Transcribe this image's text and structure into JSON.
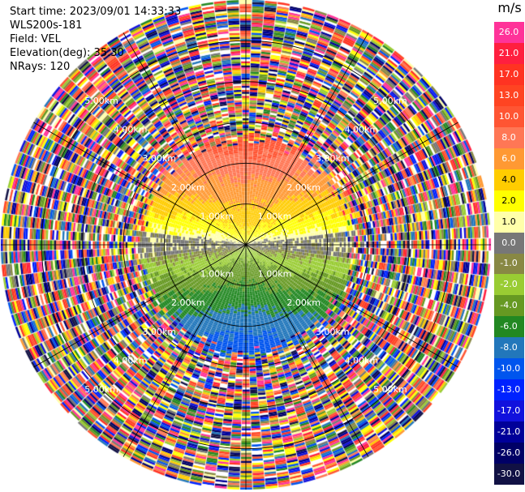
{
  "header": {
    "start_time": "Start time: 2023/09/01 14:33:33",
    "instrument": "WLS200s-181",
    "field": "Field: VEL",
    "elevation": "Elevation(deg): 35.30",
    "nrays": "NRays: 120"
  },
  "chart_data": {
    "type": "heatmap",
    "projection": "polar-ppi",
    "title": "",
    "nrays": 120,
    "max_range_km": 6.0,
    "range_rings_km": [
      1.0,
      2.0,
      3.0,
      4.0,
      5.0
    ],
    "ring_labels": [
      "1.00km",
      "2.00km",
      "3.00km",
      "4.00km",
      "5.00km"
    ],
    "clean_range_km": 2.6,
    "flow_direction": "north-positive / south-negative",
    "colorbar": {
      "unit": "m/s",
      "ticks": [
        "26.0",
        "21.0",
        "17.0",
        "13.0",
        "10.0",
        "8.0",
        "6.0",
        "4.0",
        "2.0",
        "1.0",
        "0.0",
        "-1.0",
        "-2.0",
        "-4.0",
        "-6.0",
        "-8.0",
        "-10.0",
        "-13.0",
        "-17.0",
        "-21.0",
        "-26.0",
        "-30.0"
      ],
      "colors": [
        "#ff3399",
        "#ff1f3f",
        "#ff3322",
        "#ff4422",
        "#ff5533",
        "#ff7755",
        "#ff9933",
        "#ffcc00",
        "#ffff00",
        "#ffffaa",
        "#777777",
        "#888844",
        "#99cc33",
        "#669922",
        "#228822",
        "#2277bb",
        "#0055ee",
        "#0022ff",
        "#1111dd",
        "#000099",
        "#000066",
        "#111144"
      ]
    }
  }
}
